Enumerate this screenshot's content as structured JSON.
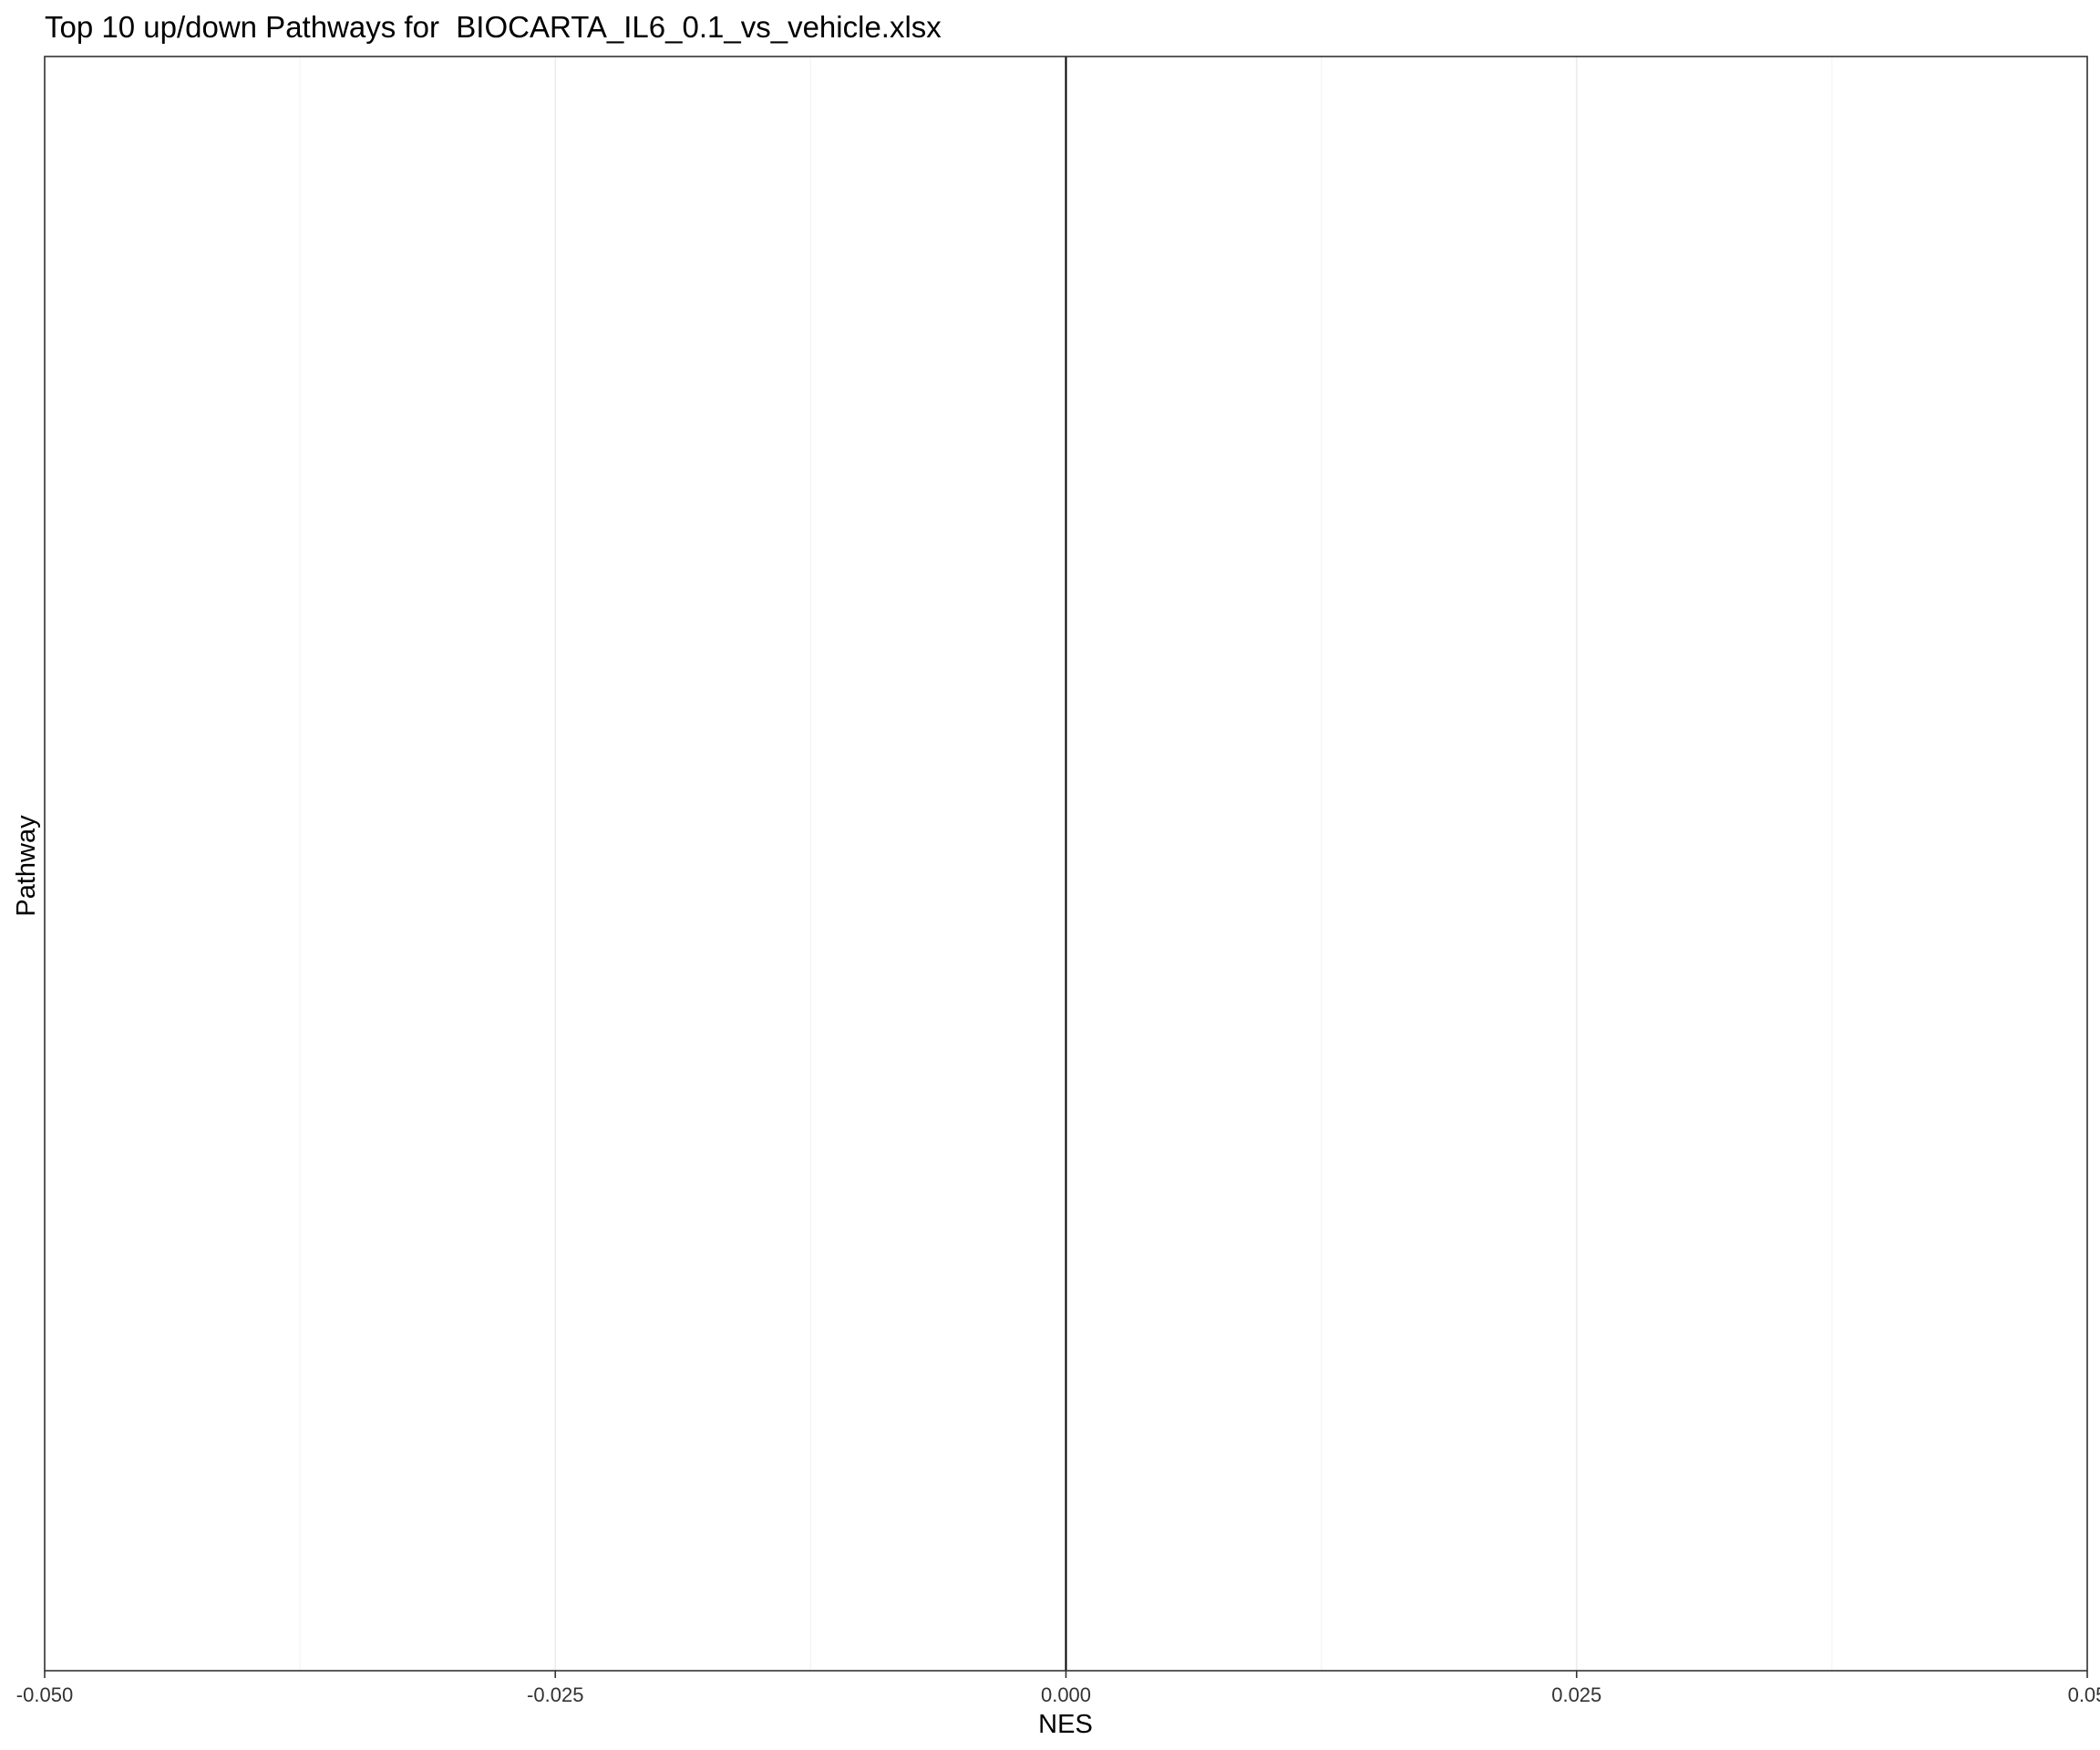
{
  "chart_data": {
    "type": "bar",
    "title": "Top 10 up/down Pathways for  BIOCARTA_IL6_0.1_vs_vehicle.xlsx",
    "xlabel": "NES",
    "ylabel": "Pathway",
    "categories": [],
    "values": [],
    "xlim": [
      -0.05,
      0.05
    ],
    "x_ticks": [
      -0.05,
      -0.025,
      0,
      0.025,
      0.05
    ],
    "x_tick_labels": [
      "-0.050",
      "-0.025",
      "0.000",
      "0.025",
      "0.05"
    ],
    "x_minor_gridlines": [
      -0.0375,
      -0.0125,
      0.0125,
      0.0375
    ],
    "reference_line_x": 0,
    "grid": true,
    "legend": "none",
    "colors": {
      "background": "#ffffff",
      "panel_border": "#333333",
      "grid_major": "#ebebeb",
      "grid_minor": "#f4f4f4",
      "reference_line": "#000000",
      "text": "#000000",
      "tick_text": "#333333"
    }
  }
}
